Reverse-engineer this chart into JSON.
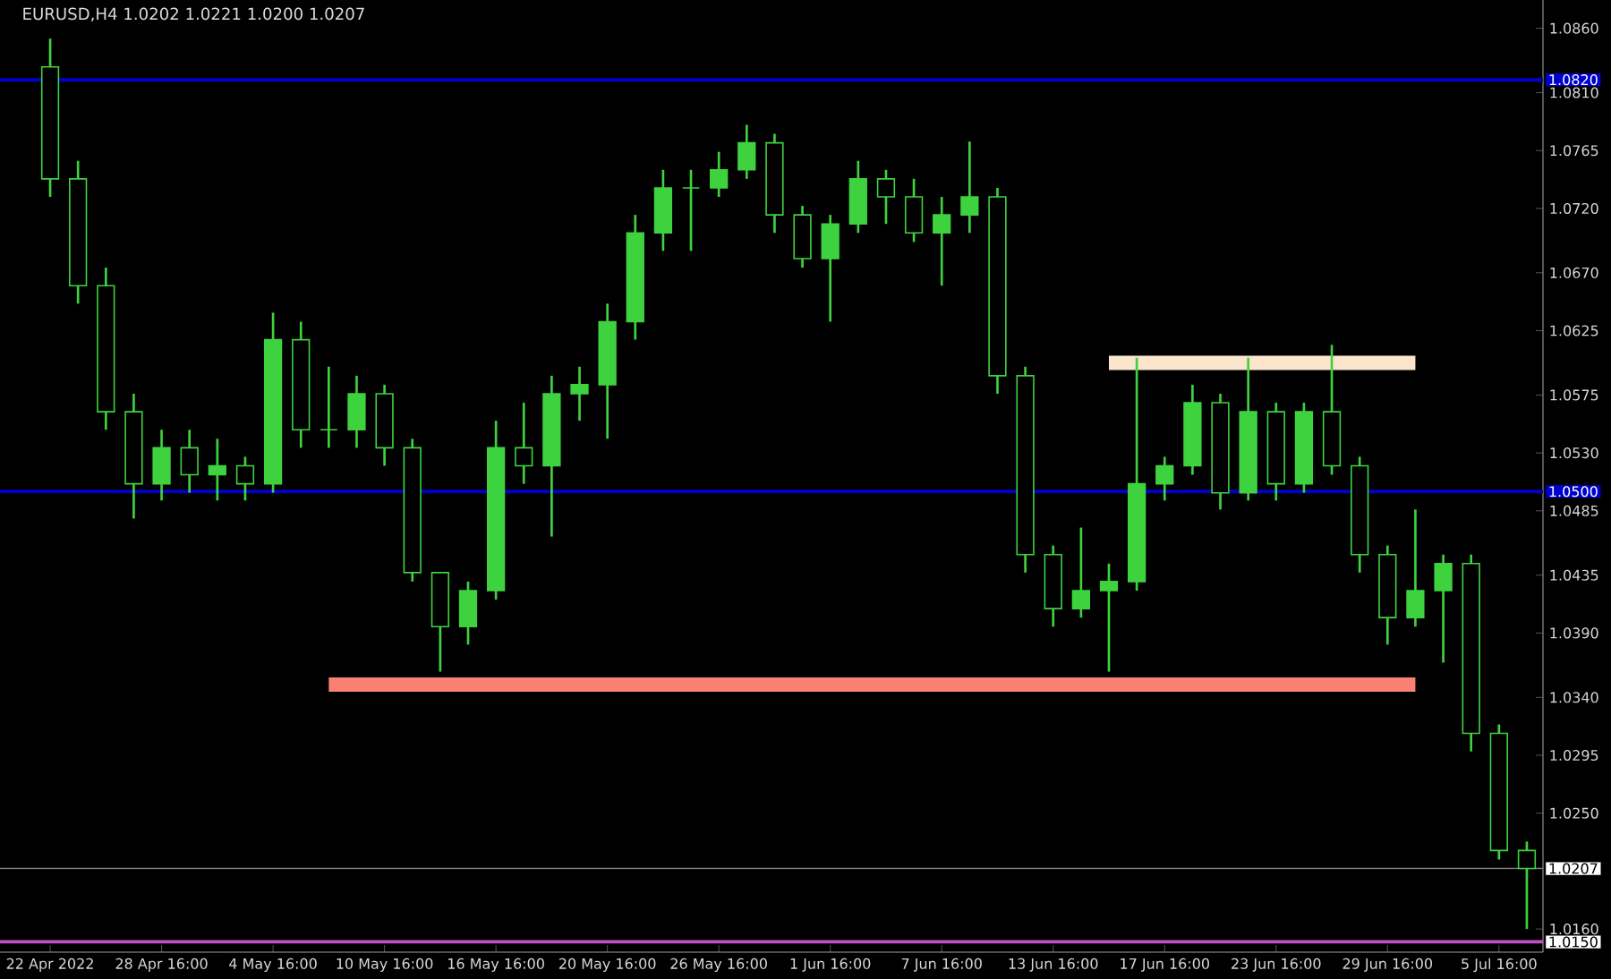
{
  "chart_data": {
    "type": "candlestick",
    "title": "EURUSD,H4  1.0202 1.0221 1.0200 1.0207",
    "categories": [
      "22 Apr 2022",
      null,
      null,
      null,
      "28 Apr 16:00",
      null,
      null,
      null,
      "4 May 16:00",
      null,
      null,
      null,
      "10 May 16:00",
      null,
      null,
      null,
      "16 May 16:00",
      null,
      null,
      null,
      "20 May 16:00",
      null,
      null,
      null,
      "26 May 16:00",
      null,
      null,
      null,
      "1 Jun 16:00",
      null,
      null,
      null,
      "7 Jun 16:00",
      null,
      null,
      null,
      "13 Jun 16:00",
      null,
      null,
      null,
      "17 Jun 16:00",
      null,
      null,
      null,
      "23 Jun 16:00",
      null,
      null,
      null,
      "29 Jun 16:00",
      null,
      null,
      null,
      "5 Jul 16:00",
      null
    ],
    "ylim": [
      1.0142,
      1.0882
    ],
    "yticks": [
      {
        "value": 1.086,
        "label": "1.0860"
      },
      {
        "value": 1.081,
        "label": "1.0810"
      },
      {
        "value": 1.0765,
        "label": "1.0765"
      },
      {
        "value": 1.072,
        "label": "1.0720"
      },
      {
        "value": 1.067,
        "label": "1.0670"
      },
      {
        "value": 1.0625,
        "label": "1.0625"
      },
      {
        "value": 1.0575,
        "label": "1.0575"
      },
      {
        "value": 1.053,
        "label": "1.0530"
      },
      {
        "value": 1.0485,
        "label": "1.0485"
      },
      {
        "value": 1.0435,
        "label": "1.0435"
      },
      {
        "value": 1.039,
        "label": "1.0390"
      },
      {
        "value": 1.034,
        "label": "1.0340"
      },
      {
        "value": 1.0295,
        "label": "1.0295"
      },
      {
        "value": 1.025,
        "label": "1.0250"
      },
      {
        "value": 1.016,
        "label": "1.0160"
      }
    ],
    "ref_lines": [
      {
        "axis": "y",
        "value": 1.082,
        "label": "1.0820",
        "color": "#0000cc"
      },
      {
        "axis": "y",
        "value": 1.05,
        "label": "1.0500",
        "color": "#0000cc"
      },
      {
        "axis": "y",
        "value": 1.0207,
        "label": "1.0207",
        "color": "#808080"
      },
      {
        "axis": "y",
        "value": 1.015,
        "label": "1.0150",
        "color": "#c050c8"
      }
    ],
    "series": [
      {
        "color": "#3fd23f",
        "ohlc": [
          [
            1.083,
            1.0852,
            1.0729,
            1.0743
          ],
          [
            1.0743,
            1.0757,
            1.0646,
            1.066
          ],
          [
            1.066,
            1.0674,
            1.0548,
            1.0562
          ],
          [
            1.0562,
            1.0576,
            1.0479,
            1.0506
          ],
          [
            1.0506,
            1.0548,
            1.0493,
            1.0534
          ],
          [
            1.0534,
            1.0548,
            1.0499,
            1.0513
          ],
          [
            1.0513,
            1.0541,
            1.0493,
            1.052
          ],
          [
            1.052,
            1.0527,
            1.0493,
            1.0506
          ],
          [
            1.0506,
            1.0639,
            1.0499,
            1.0618
          ],
          [
            1.0618,
            1.0632,
            1.0534,
            1.0548
          ],
          [
            1.0548,
            1.0597,
            1.0534,
            1.0548
          ],
          [
            1.0548,
            1.059,
            1.0534,
            1.0576
          ],
          [
            1.0576,
            1.0583,
            1.052,
            1.0534
          ],
          [
            1.0534,
            1.0541,
            1.043,
            1.0437
          ],
          [
            1.0437,
            1.0437,
            1.036,
            1.0395
          ],
          [
            1.0395,
            1.043,
            1.0381,
            1.0423
          ],
          [
            1.0423,
            1.0555,
            1.0416,
            1.0534
          ],
          [
            1.0534,
            1.0569,
            1.0506,
            1.052
          ],
          [
            1.052,
            1.059,
            1.0465,
            1.0576
          ],
          [
            1.0576,
            1.0597,
            1.0555,
            1.0583
          ],
          [
            1.0583,
            1.0646,
            1.0541,
            1.0632
          ],
          [
            1.0632,
            1.0715,
            1.0618,
            1.0701
          ],
          [
            1.0701,
            1.075,
            1.0687,
            1.0736
          ],
          [
            1.0736,
            1.075,
            1.0687,
            1.0736
          ],
          [
            1.0736,
            1.0764,
            1.0729,
            1.075
          ],
          [
            1.075,
            1.0785,
            1.0743,
            1.0771
          ],
          [
            1.0771,
            1.0778,
            1.0701,
            1.0715
          ],
          [
            1.0715,
            1.0722,
            1.0674,
            1.0681
          ],
          [
            1.0681,
            1.0715,
            1.0632,
            1.0708
          ],
          [
            1.0708,
            1.0757,
            1.0701,
            1.0743
          ],
          [
            1.0743,
            1.075,
            1.0708,
            1.0729
          ],
          [
            1.0729,
            1.0743,
            1.0694,
            1.0701
          ],
          [
            1.0701,
            1.0729,
            1.066,
            1.0715
          ],
          [
            1.0715,
            1.0772,
            1.0701,
            1.0729
          ],
          [
            1.0729,
            1.0736,
            1.0576,
            1.059
          ],
          [
            1.059,
            1.0597,
            1.0437,
            1.0451
          ],
          [
            1.0451,
            1.0458,
            1.0395,
            1.0409
          ],
          [
            1.0409,
            1.0472,
            1.0402,
            1.0423
          ],
          [
            1.0423,
            1.0444,
            1.036,
            1.043
          ],
          [
            1.043,
            1.0604,
            1.0423,
            1.0506
          ],
          [
            1.0506,
            1.0527,
            1.0493,
            1.052
          ],
          [
            1.052,
            1.0583,
            1.0513,
            1.0569
          ],
          [
            1.0569,
            1.0576,
            1.0486,
            1.0499
          ],
          [
            1.0499,
            1.0604,
            1.0493,
            1.0562
          ],
          [
            1.0562,
            1.0569,
            1.0493,
            1.0506
          ],
          [
            1.0506,
            1.0569,
            1.0499,
            1.0562
          ],
          [
            1.0562,
            1.0614,
            1.0513,
            1.052
          ],
          [
            1.052,
            1.0527,
            1.0437,
            1.0451
          ],
          [
            1.0451,
            1.0458,
            1.0381,
            1.0402
          ],
          [
            1.0402,
            1.0486,
            1.0395,
            1.0423
          ],
          [
            1.0423,
            1.0451,
            1.0367,
            1.0444
          ],
          [
            1.0444,
            1.0451,
            1.0298,
            1.0312
          ],
          [
            1.0312,
            1.0319,
            1.0214,
            1.0221
          ],
          [
            1.0221,
            1.0228,
            1.016,
            1.0207
          ]
        ]
      },
      {
        "type": "line",
        "color": "#fbe5cc",
        "values": [
          null,
          null,
          null,
          null,
          null,
          null,
          null,
          null,
          null,
          null,
          null,
          null,
          null,
          null,
          null,
          null,
          null,
          null,
          null,
          null,
          null,
          null,
          null,
          null,
          null,
          null,
          null,
          null,
          null,
          null,
          null,
          null,
          null,
          null,
          null,
          null,
          null,
          null,
          1.06,
          1.06,
          1.06,
          1.06,
          1.06,
          1.06,
          1.06,
          1.06,
          1.06,
          1.06,
          1.06,
          1.06,
          null,
          null,
          null,
          null
        ]
      },
      {
        "type": "line",
        "color": "#fa8072",
        "values": [
          null,
          null,
          null,
          null,
          null,
          null,
          null,
          null,
          null,
          null,
          1.035,
          1.035,
          1.035,
          1.035,
          1.035,
          1.035,
          1.035,
          1.035,
          1.035,
          1.035,
          1.035,
          1.035,
          1.035,
          1.035,
          1.035,
          1.035,
          1.035,
          1.035,
          1.035,
          1.035,
          1.035,
          1.035,
          1.035,
          1.035,
          1.035,
          1.035,
          1.035,
          1.035,
          1.035,
          1.035,
          1.035,
          1.035,
          1.035,
          1.035,
          1.035,
          1.035,
          1.035,
          1.035,
          1.035,
          1.035,
          null,
          null,
          null,
          null
        ]
      }
    ]
  }
}
